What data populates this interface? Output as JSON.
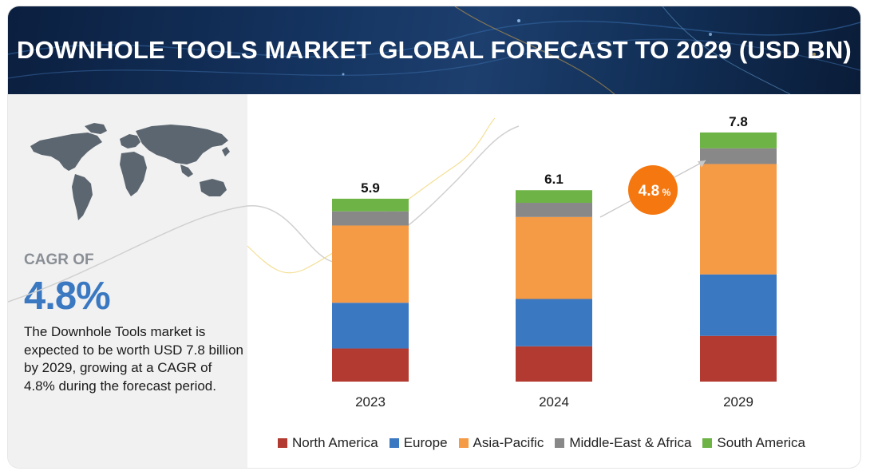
{
  "header": {
    "title": "DOWNHOLE TOOLS MARKET GLOBAL FORECAST TO 2029 (USD BN)"
  },
  "summary": {
    "cagr_label": "CAGR OF",
    "cagr_value": "4.8%",
    "description": "The Downhole Tools market is expected to be worth USD 7.8 billion by 2029, growing at a CAGR of 4.8% during the forecast period."
  },
  "cagr_bubble": {
    "value": "4.8",
    "unit": "%"
  },
  "colors": {
    "North America": "#b23a30",
    "Europe": "#3a78c2",
    "Asia-Pacific": "#f59a45",
    "Middle-East & Africa": "#888888",
    "South America": "#6db345",
    "bubble": "#f5770f"
  },
  "chart_data": {
    "type": "bar",
    "stacked": true,
    "categories": [
      "2023",
      "2024",
      "2029"
    ],
    "totals": [
      "5.9",
      "6.1",
      "7.8"
    ],
    "series": [
      {
        "name": "North America",
        "values": [
          1.05,
          1.12,
          1.45
        ]
      },
      {
        "name": "Europe",
        "values": [
          1.45,
          1.5,
          1.95
        ]
      },
      {
        "name": "Asia-Pacific",
        "values": [
          2.45,
          2.6,
          3.5
        ]
      },
      {
        "name": "Middle-East & Africa",
        "values": [
          0.45,
          0.45,
          0.5
        ]
      },
      {
        "name": "South America",
        "values": [
          0.4,
          0.4,
          0.5
        ]
      }
    ],
    "ylim": [
      0,
      9
    ],
    "grid": false,
    "legend_position": "bottom"
  }
}
